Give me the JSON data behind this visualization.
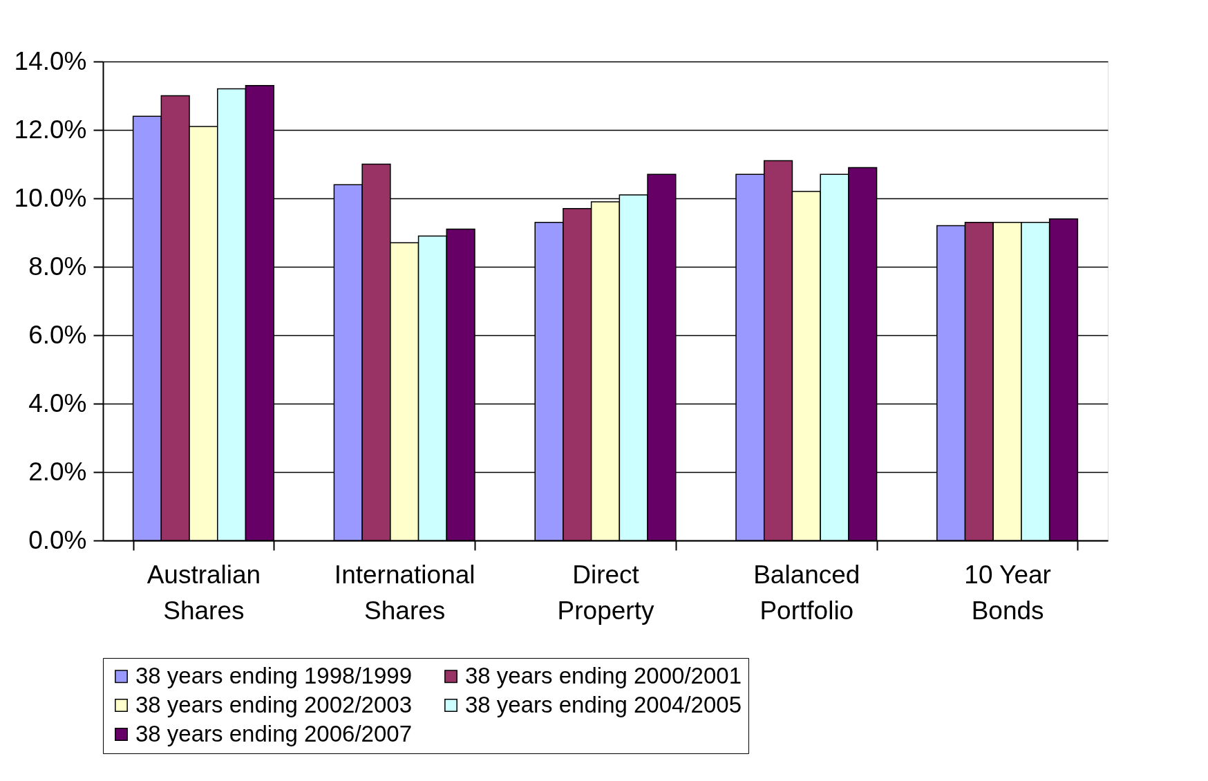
{
  "chart_data": {
    "type": "bar",
    "categories": [
      "Australian Shares",
      "International Shares",
      "Direct Property",
      "Balanced Portfolio",
      "10 Year Bonds"
    ],
    "series": [
      {
        "name": "38 years ending 1998/1999",
        "color": "#9999ff",
        "values": [
          12.4,
          10.4,
          9.3,
          10.7,
          9.2
        ]
      },
      {
        "name": "38 years ending 2000/2001",
        "color": "#993366",
        "values": [
          13.0,
          11.0,
          9.7,
          11.1,
          9.3
        ]
      },
      {
        "name": "38 years ending 2002/2003",
        "color": "#ffffcc",
        "values": [
          12.1,
          8.7,
          9.9,
          10.2,
          9.3
        ]
      },
      {
        "name": "38 years ending 2004/2005",
        "color": "#ccffff",
        "values": [
          13.2,
          8.9,
          10.1,
          10.7,
          9.3
        ]
      },
      {
        "name": "38 years ending 2006/2007",
        "color": "#660066",
        "values": [
          13.3,
          9.1,
          10.7,
          10.9,
          9.4
        ]
      }
    ],
    "ylim": [
      0,
      14
    ],
    "yticks": [
      {
        "value": 0,
        "label": "0.0%"
      },
      {
        "value": 2,
        "label": "2.0%"
      },
      {
        "value": 4,
        "label": "4.0%"
      },
      {
        "value": 6,
        "label": "6.0%"
      },
      {
        "value": 8,
        "label": "8.0%"
      },
      {
        "value": 10,
        "label": "10.0%"
      },
      {
        "value": 12,
        "label": "12.0%"
      },
      {
        "value": 14,
        "label": "14.0%"
      }
    ],
    "grid": "y",
    "legend": "bottom"
  }
}
